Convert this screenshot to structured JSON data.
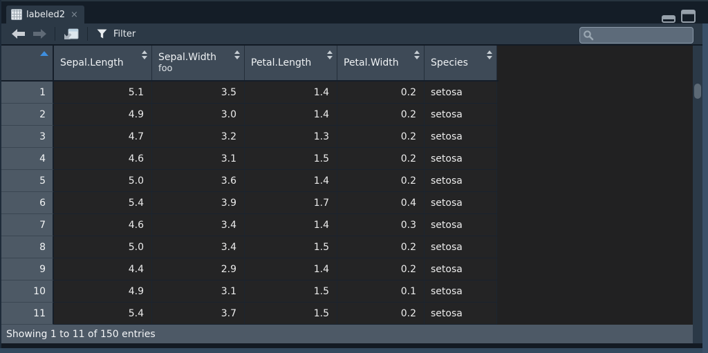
{
  "tab": {
    "label": "labeled2",
    "close_label": "×"
  },
  "window_controls": {
    "minimize": "minimize",
    "maximize": "maximize"
  },
  "toolbar": {
    "filter_label": "Filter"
  },
  "search": {
    "placeholder": "",
    "value": ""
  },
  "table": {
    "row_number_column": {
      "label": "",
      "sorted": "ascending"
    },
    "columns": [
      {
        "label": "Sepal.Length",
        "sub": ""
      },
      {
        "label": "Sepal.Width",
        "sub": "foo"
      },
      {
        "label": "Petal.Length",
        "sub": ""
      },
      {
        "label": "Petal.Width",
        "sub": ""
      },
      {
        "label": "Species",
        "sub": ""
      }
    ],
    "rows": [
      {
        "n": "1",
        "cells": [
          "5.1",
          "3.5",
          "1.4",
          "0.2",
          "setosa"
        ]
      },
      {
        "n": "2",
        "cells": [
          "4.9",
          "3.0",
          "1.4",
          "0.2",
          "setosa"
        ]
      },
      {
        "n": "3",
        "cells": [
          "4.7",
          "3.2",
          "1.3",
          "0.2",
          "setosa"
        ]
      },
      {
        "n": "4",
        "cells": [
          "4.6",
          "3.1",
          "1.5",
          "0.2",
          "setosa"
        ]
      },
      {
        "n": "5",
        "cells": [
          "5.0",
          "3.6",
          "1.4",
          "0.2",
          "setosa"
        ]
      },
      {
        "n": "6",
        "cells": [
          "5.4",
          "3.9",
          "1.7",
          "0.4",
          "setosa"
        ]
      },
      {
        "n": "7",
        "cells": [
          "4.6",
          "3.4",
          "1.4",
          "0.3",
          "setosa"
        ]
      },
      {
        "n": "8",
        "cells": [
          "5.0",
          "3.4",
          "1.5",
          "0.2",
          "setosa"
        ]
      },
      {
        "n": "9",
        "cells": [
          "4.4",
          "2.9",
          "1.4",
          "0.2",
          "setosa"
        ]
      },
      {
        "n": "10",
        "cells": [
          "4.9",
          "3.1",
          "1.5",
          "0.1",
          "setosa"
        ]
      },
      {
        "n": "11",
        "cells": [
          "5.4",
          "3.7",
          "1.5",
          "0.2",
          "setosa"
        ]
      }
    ]
  },
  "status": {
    "text": "Showing 1 to 11 of 150 entries"
  },
  "colors": {
    "accent_sort": "#3e8ede",
    "header_bg": "#3e4a57",
    "rownum_bg": "#4d5965",
    "cell_bg": "#242425",
    "frame": "#3a5068",
    "toolbar_bg": "#2c3946"
  }
}
